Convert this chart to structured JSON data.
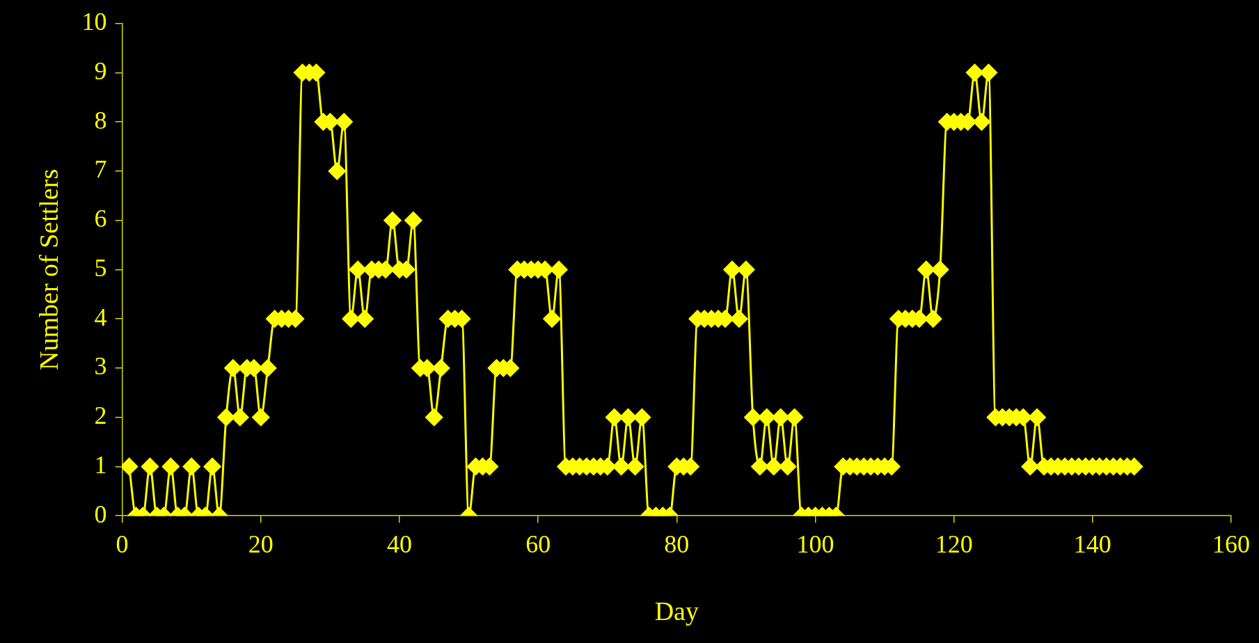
{
  "chart_data": {
    "type": "line",
    "xlabel": "Day",
    "ylabel": "Number of Settlers",
    "x": [
      1,
      2,
      3,
      4,
      5,
      6,
      7,
      8,
      9,
      10,
      11,
      12,
      13,
      14,
      15,
      16,
      17,
      18,
      19,
      20,
      21,
      22,
      23,
      24,
      25,
      26,
      27,
      28,
      29,
      30,
      31,
      32,
      33,
      34,
      35,
      36,
      37,
      38,
      39,
      40,
      41,
      42,
      43,
      44,
      45,
      46,
      47,
      48,
      49,
      50,
      51,
      52,
      53,
      54,
      55,
      56,
      57,
      58,
      59,
      60,
      61,
      62,
      63,
      64,
      65,
      66,
      67,
      68,
      69,
      70,
      71,
      72,
      73,
      74,
      75,
      76,
      77,
      78,
      79,
      80,
      81,
      82,
      83,
      84,
      85,
      86,
      87,
      88,
      89,
      90,
      91,
      92,
      93,
      94,
      95,
      96,
      97,
      98,
      99,
      100,
      101,
      102,
      103,
      104,
      105,
      106,
      107,
      108,
      109,
      110,
      111,
      112,
      113,
      114,
      115,
      116,
      117,
      118,
      119,
      120,
      121,
      122,
      123,
      124,
      125,
      126,
      127,
      128,
      129,
      130,
      131,
      132,
      133,
      134,
      135,
      136,
      137,
      138,
      139,
      140,
      141,
      142,
      143,
      144,
      145,
      146
    ],
    "series": [
      {
        "color": "#ffff00",
        "values": [
          1,
          0,
          0,
          1,
          0,
          0,
          1,
          0,
          0,
          1,
          0,
          0,
          1,
          0,
          2,
          3,
          2,
          3,
          3,
          2,
          3,
          4,
          4,
          4,
          4,
          9,
          9,
          9,
          8,
          8,
          7,
          8,
          4,
          5,
          4,
          5,
          5,
          5,
          6,
          5,
          5,
          6,
          3,
          3,
          2,
          3,
          4,
          4,
          4,
          0,
          1,
          1,
          1,
          3,
          3,
          3,
          5,
          5,
          5,
          5,
          5,
          4,
          5,
          1,
          1,
          1,
          1,
          1,
          1,
          1,
          2,
          1,
          2,
          1,
          2,
          0,
          0,
          0,
          0,
          1,
          1,
          1,
          4,
          4,
          4,
          4,
          4,
          5,
          4,
          5,
          2,
          1,
          2,
          1,
          2,
          1,
          2,
          0,
          0,
          0,
          0,
          0,
          0,
          1,
          1,
          1,
          1,
          1,
          1,
          1,
          1,
          4,
          4,
          4,
          4,
          5,
          4,
          5,
          8,
          8,
          8,
          8,
          9,
          8,
          9,
          2,
          2,
          2,
          2,
          2,
          1,
          2,
          1,
          1,
          1,
          1,
          1,
          1,
          1,
          1,
          1,
          1,
          1,
          1,
          1,
          1
        ]
      }
    ],
    "xlim": [
      0,
      160
    ],
    "xticks": [
      0,
      20,
      40,
      60,
      80,
      100,
      120,
      140,
      160
    ],
    "ylim": [
      0,
      10
    ],
    "yticks": [
      0,
      1,
      2,
      3,
      4,
      5,
      6,
      7,
      8,
      9,
      10
    ],
    "grid": false,
    "legend": false,
    "marker": "diamond",
    "line_style": "solid"
  }
}
